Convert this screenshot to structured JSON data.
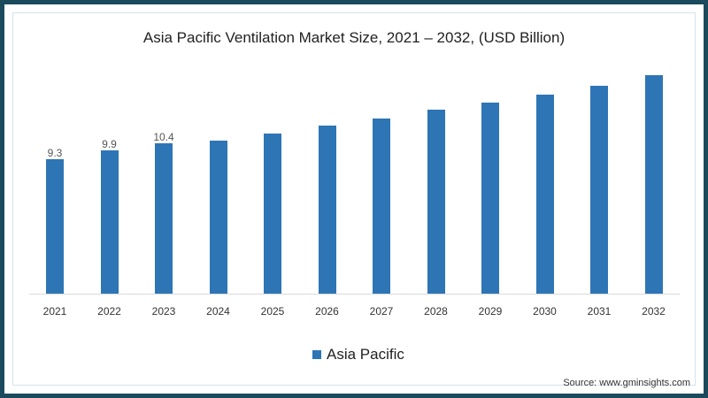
{
  "chart_data": {
    "type": "bar",
    "title": "Asia Pacific Ventilation Market Size, 2021 – 2032, (USD Billion)",
    "xlabel": "",
    "ylabel": "USD Billion",
    "categories": [
      "2021",
      "2022",
      "2023",
      "2024",
      "2025",
      "2026",
      "2027",
      "2028",
      "2029",
      "2030",
      "2031",
      "2032"
    ],
    "series": [
      {
        "name": "Asia Pacific",
        "color": "#2e75b6",
        "values": [
          9.3,
          9.9,
          10.4,
          10.6,
          11.1,
          11.6,
          12.1,
          12.7,
          13.2,
          13.8,
          14.4,
          15.1
        ]
      }
    ],
    "data_labels": {
      "2021": "9.3",
      "2022": "9.9",
      "2023": "10.4"
    },
    "legend_position": "bottom",
    "grid": false,
    "ylim": [
      0,
      16
    ]
  },
  "title": "Asia Pacific Ventilation Market Size, 2021 – 2032, (USD Billion)",
  "legend": {
    "label": "Asia Pacific"
  },
  "source": "Source: www.gminsights.com",
  "labels": {
    "l2021": "9.3",
    "l2022": "9.9",
    "l2023": "10.4"
  },
  "years": {
    "y2021": "2021",
    "y2022": "2022",
    "y2023": "2023",
    "y2024": "2024",
    "y2025": "2025",
    "y2026": "2026",
    "y2027": "2027",
    "y2028": "2028",
    "y2029": "2029",
    "y2030": "2030",
    "y2031": "2031",
    "y2032": "2032"
  },
  "colors": {
    "bar": "#2e75b6",
    "frame": "#1a4a5c"
  }
}
